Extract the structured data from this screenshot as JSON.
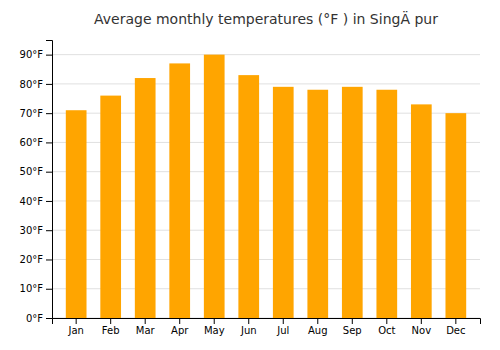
{
  "chart_data": {
    "type": "bar",
    "title": "Average monthly temperatures (°F ) in SingÄ pur",
    "categories": [
      "Jan",
      "Feb",
      "Mar",
      "Apr",
      "May",
      "Jun",
      "Jul",
      "Aug",
      "Sep",
      "Oct",
      "Nov",
      "Dec"
    ],
    "values": [
      71,
      76,
      82,
      87,
      90,
      83,
      79,
      78,
      79,
      78,
      73,
      70
    ],
    "color": "#FFA500",
    "ylim": [
      0,
      95
    ],
    "yticks": [
      {
        "value": 0,
        "label": "0°F"
      },
      {
        "value": 10,
        "label": "10°F"
      },
      {
        "value": 20,
        "label": "20°F"
      },
      {
        "value": 30,
        "label": "30°F"
      },
      {
        "value": 40,
        "label": "40°F"
      },
      {
        "value": 50,
        "label": "50°F"
      },
      {
        "value": 60,
        "label": "60°F"
      },
      {
        "value": 70,
        "label": "70°F"
      },
      {
        "value": 80,
        "label": "80°F"
      },
      {
        "value": 90,
        "label": "90°F"
      }
    ],
    "grid": true
  }
}
